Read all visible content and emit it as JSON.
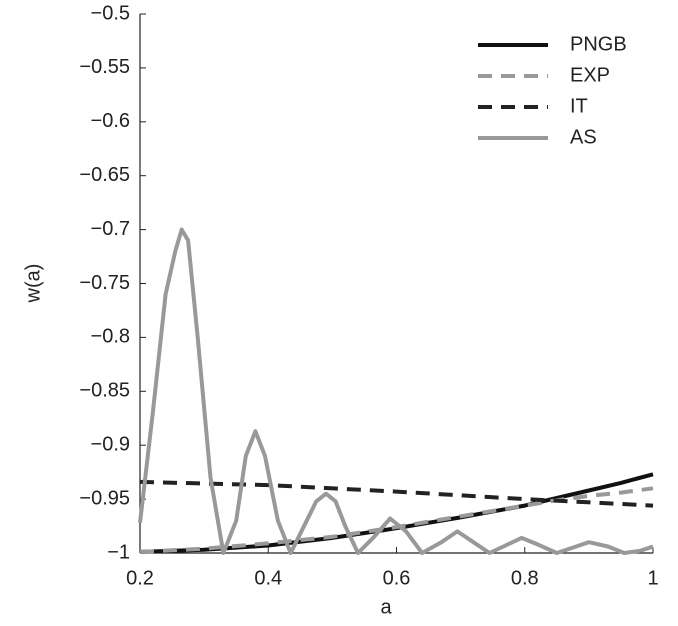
{
  "chart_data": {
    "type": "line",
    "x_label": "a",
    "y_label": "w(a)",
    "xlim": [
      0.2,
      1
    ],
    "xticks": [
      0.2,
      0.4,
      0.6,
      0.8,
      1
    ],
    "ylim": [
      -1,
      -0.5
    ],
    "yticks": [
      {
        "value": -1,
        "label": "−1"
      },
      {
        "value": -0.95,
        "label": "−0.95"
      },
      {
        "value": -0.9,
        "label": "−0.9"
      },
      {
        "value": -0.85,
        "label": "−0.85"
      },
      {
        "value": -0.8,
        "label": "−0.8"
      },
      {
        "value": -0.75,
        "label": "−0.75"
      },
      {
        "value": -0.7,
        "label": "−0.7"
      },
      {
        "value": -0.65,
        "label": "−0.65"
      },
      {
        "value": -0.6,
        "label": "−0.6"
      },
      {
        "value": -0.55,
        "label": "−0.55"
      },
      {
        "value": -0.5,
        "label": "−0.5"
      }
    ],
    "legend": "upper right",
    "series": [
      {
        "name": "PNGB",
        "color": "#111111",
        "dash": false,
        "x": [
          0.2,
          0.3,
          0.4,
          0.5,
          0.6,
          0.7,
          0.8,
          0.85,
          0.9,
          0.95,
          1
        ],
        "values": [
          -0.999,
          -0.997,
          -0.993,
          -0.986,
          -0.977,
          -0.967,
          -0.956,
          -0.949,
          -0.942,
          -0.935,
          -0.927
        ]
      },
      {
        "name": "EXP",
        "color": "#999999",
        "dash": true,
        "x": [
          0.2,
          0.3,
          0.4,
          0.5,
          0.6,
          0.7,
          0.8,
          0.85,
          0.9,
          0.95,
          1
        ],
        "values": [
          -0.999,
          -0.996,
          -0.991,
          -0.985,
          -0.976,
          -0.966,
          -0.956,
          -0.951,
          -0.947,
          -0.944,
          -0.94
        ]
      },
      {
        "name": "IT",
        "color": "#222222",
        "dash": true,
        "x": [
          0.2,
          0.4,
          0.6,
          0.8,
          1
        ],
        "values": [
          -0.934,
          -0.937,
          -0.943,
          -0.95,
          -0.956
        ]
      },
      {
        "name": "AS",
        "color": "#999999",
        "dash": false,
        "x": [
          0.2,
          0.22,
          0.24,
          0.255,
          0.265,
          0.275,
          0.29,
          0.31,
          0.33,
          0.35,
          0.365,
          0.38,
          0.395,
          0.415,
          0.435,
          0.46,
          0.475,
          0.49,
          0.505,
          0.52,
          0.54,
          0.565,
          0.59,
          0.615,
          0.64,
          0.67,
          0.695,
          0.72,
          0.745,
          0.77,
          0.795,
          0.82,
          0.85,
          0.875,
          0.9,
          0.93,
          0.955,
          0.98,
          1
        ],
        "values": [
          -0.972,
          -0.87,
          -0.76,
          -0.72,
          -0.7,
          -0.71,
          -0.8,
          -0.93,
          -1,
          -0.97,
          -0.91,
          -0.887,
          -0.91,
          -0.97,
          -1,
          -0.97,
          -0.952,
          -0.945,
          -0.952,
          -0.975,
          -1,
          -0.985,
          -0.968,
          -0.98,
          -1,
          -0.99,
          -0.98,
          -0.99,
          -1,
          -0.993,
          -0.986,
          -0.992,
          -1,
          -0.995,
          -0.99,
          -0.994,
          -1,
          -0.998,
          -0.994
        ]
      }
    ]
  }
}
